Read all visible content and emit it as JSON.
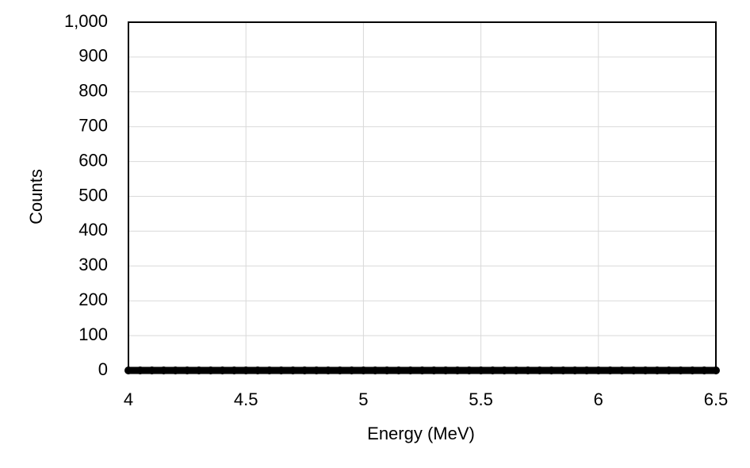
{
  "chart_data": {
    "type": "line",
    "xlabel": "Energy (MeV)",
    "ylabel": "Counts",
    "x": [
      4,
      4.05,
      4.1,
      4.15,
      4.2,
      4.25,
      4.3,
      4.35,
      4.4,
      4.45,
      4.5,
      4.55,
      4.6,
      4.65,
      4.7,
      4.75,
      4.8,
      4.85,
      4.9,
      4.95,
      5,
      5.05,
      5.1,
      5.15,
      5.2,
      5.25,
      5.3,
      5.35,
      5.4,
      5.45,
      5.5,
      5.55,
      5.6,
      5.65,
      5.7,
      5.75,
      5.8,
      5.85,
      5.9,
      5.95,
      6,
      6.05,
      6.1,
      6.15,
      6.2,
      6.25,
      6.3,
      6.35,
      6.4,
      6.45,
      6.5
    ],
    "series": [
      {
        "color": "#000000",
        "marker": true,
        "values": [
          0,
          0,
          0,
          0,
          0,
          0,
          0,
          0,
          0,
          0,
          0,
          0,
          0,
          0,
          0,
          0,
          0,
          0,
          0,
          0,
          0,
          0,
          0,
          0,
          0,
          0,
          0,
          0,
          0,
          0,
          0,
          0,
          0,
          0,
          0,
          0,
          0,
          0,
          0,
          0,
          0,
          0,
          0,
          0,
          0,
          0,
          0,
          0,
          0,
          0,
          0
        ]
      }
    ],
    "xlim": [
      4,
      6.5
    ],
    "xticks": [
      4,
      4.5,
      5,
      5.5,
      6,
      6.5
    ],
    "ylim": [
      0,
      1000
    ],
    "yticks": [
      0,
      100,
      200,
      300,
      400,
      500,
      600,
      700,
      800,
      900,
      {
        "value": 1000,
        "label": "1,000"
      }
    ],
    "grid": true
  }
}
